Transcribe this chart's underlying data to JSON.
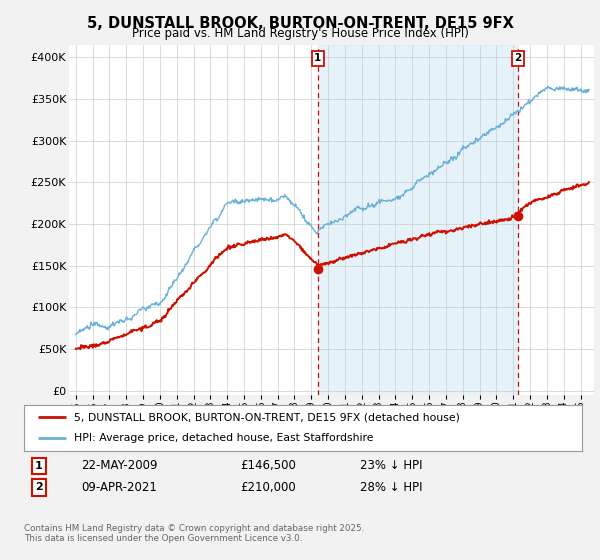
{
  "title": "5, DUNSTALL BROOK, BURTON-ON-TRENT, DE15 9FX",
  "subtitle": "Price paid vs. HM Land Registry's House Price Index (HPI)",
  "ylabel_ticks": [
    "£0",
    "£50K",
    "£100K",
    "£150K",
    "£200K",
    "£250K",
    "£300K",
    "£350K",
    "£400K"
  ],
  "ytick_values": [
    0,
    50000,
    100000,
    150000,
    200000,
    250000,
    300000,
    350000,
    400000
  ],
  "ylim": [
    -5000,
    415000
  ],
  "xlim_start": 1994.6,
  "xlim_end": 2025.8,
  "hpi_color": "#6ab0d8",
  "hpi_fill_color": "#d6eaf8",
  "price_color": "#cc1100",
  "marker1_date": 2009.39,
  "marker2_date": 2021.28,
  "marker1_price": 146500,
  "marker2_price": 210000,
  "legend_line1": "5, DUNSTALL BROOK, BURTON-ON-TRENT, DE15 9FX (detached house)",
  "legend_line2": "HPI: Average price, detached house, East Staffordshire",
  "table_row1": [
    "1",
    "22-MAY-2009",
    "£146,500",
    "23% ↓ HPI"
  ],
  "table_row2": [
    "2",
    "09-APR-2021",
    "£210,000",
    "28% ↓ HPI"
  ],
  "footer": "Contains HM Land Registry data © Crown copyright and database right 2025.\nThis data is licensed under the Open Government Licence v3.0.",
  "bg_color": "#f2f2f2",
  "plot_bg_color": "#ffffff"
}
